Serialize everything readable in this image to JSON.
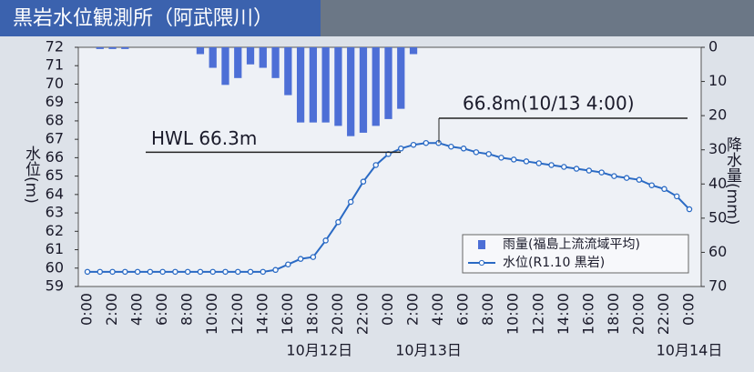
{
  "chart_data": {
    "type": "bar-line",
    "title": "黒岩水位観測所（阿武隈川）",
    "y_label": "水位(m)",
    "y2_label": "降水量(mm)",
    "categories": [
      "0:00",
      null,
      "2:00",
      null,
      "4:00",
      null,
      "6:00",
      null,
      "8:00",
      null,
      "10:00",
      null,
      "12:00",
      null,
      "14:00",
      null,
      "16:00",
      null,
      "18:00",
      null,
      "20:00",
      null,
      "22:00",
      null,
      "0:00",
      null,
      "2:00",
      null,
      "4:00",
      null,
      "6:00",
      null,
      "8:00",
      null,
      "10:00",
      null,
      "12:00",
      null,
      "14:00",
      null,
      "16:00",
      null,
      "18:00",
      null,
      "20:00",
      null,
      "22:00",
      null,
      "0:00"
    ],
    "date_labels": [
      "10月12日",
      "10月13日",
      "10月14日"
    ],
    "series": [
      {
        "name": "雨量(福島上流流域平均)",
        "type": "bar",
        "axis": "y2",
        "color": "#4d6fd6",
        "values": [
          0,
          0.5,
          0.5,
          0.5,
          0,
          0,
          0,
          0,
          0,
          2,
          6,
          11,
          9,
          5,
          6,
          9,
          14,
          22,
          22,
          22,
          23,
          26,
          25,
          23,
          21,
          18,
          2,
          0,
          0,
          0,
          0,
          0,
          0,
          0,
          0,
          0,
          0,
          0,
          0,
          0,
          0,
          0,
          0,
          0,
          0,
          0,
          0,
          0,
          0
        ]
      },
      {
        "name": "水位(R1.10 黒岩)",
        "type": "line",
        "color": "#2a6ac4",
        "values": [
          59.8,
          59.8,
          59.8,
          59.8,
          59.8,
          59.8,
          59.8,
          59.8,
          59.8,
          59.8,
          59.8,
          59.8,
          59.8,
          59.8,
          59.8,
          59.9,
          60.2,
          60.5,
          60.6,
          61.5,
          62.5,
          63.6,
          64.7,
          65.6,
          66.2,
          66.5,
          66.7,
          66.8,
          66.8,
          66.6,
          66.5,
          66.3,
          66.2,
          66.0,
          65.9,
          65.8,
          65.7,
          65.6,
          65.5,
          65.4,
          65.3,
          65.2,
          65.0,
          64.9,
          64.8,
          64.5,
          64.3,
          63.9,
          63.2
        ]
      }
    ],
    "ylim": [
      59,
      72
    ],
    "yticks": [
      59,
      60,
      61,
      62,
      63,
      64,
      65,
      66,
      67,
      68,
      69,
      70,
      71,
      72
    ],
    "y2lim": [
      0,
      70
    ],
    "y2ticks": [
      0,
      10,
      20,
      30,
      40,
      50,
      60,
      70
    ],
    "annotations": [
      {
        "text": "HWL 66.3m",
        "value": 66.3
      },
      {
        "text": "66.8m(10/13 4:00)"
      }
    ],
    "legend": "lower right"
  }
}
